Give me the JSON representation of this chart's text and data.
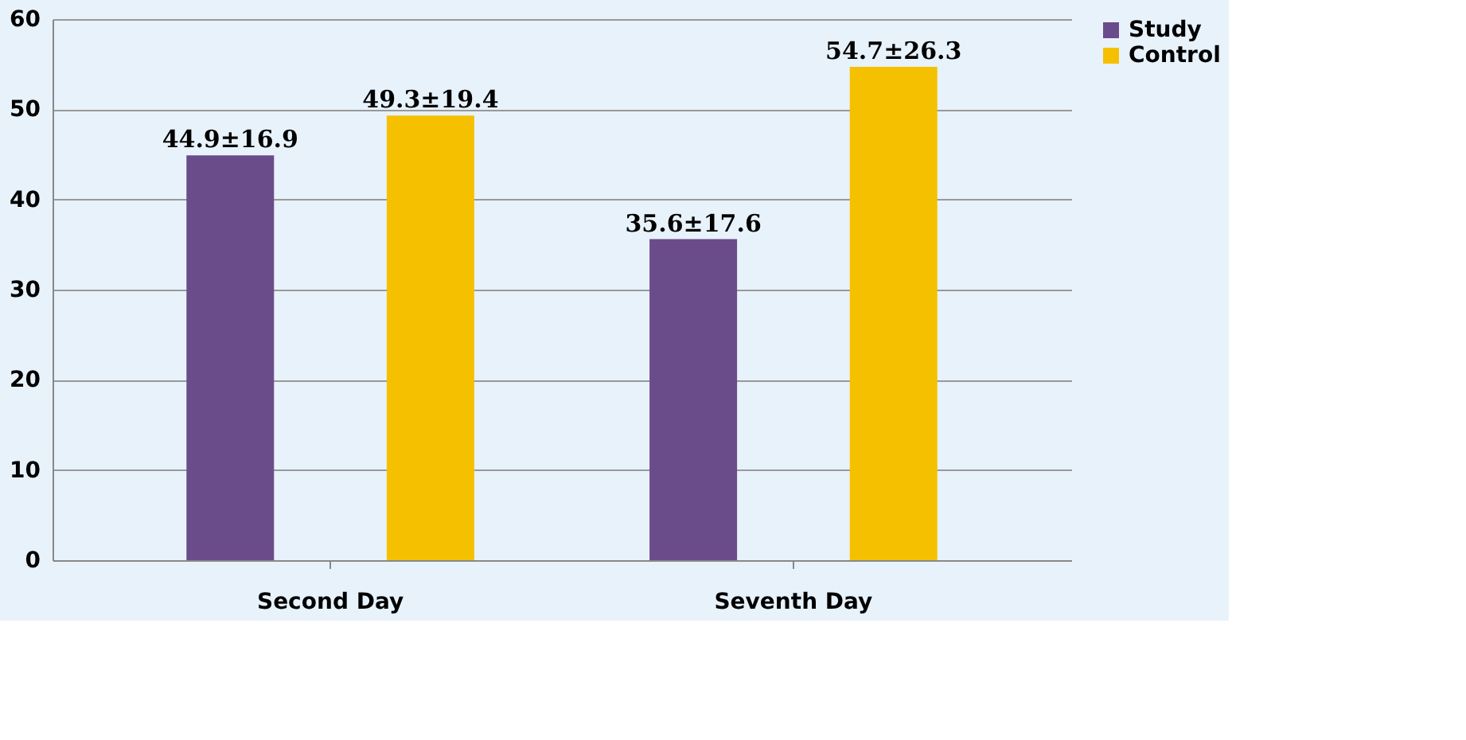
{
  "chart_data": {
    "type": "bar",
    "categories": [
      "Second Day",
      "Seventh Day"
    ],
    "series": [
      {
        "name": "Study",
        "color": "#6b4c8a",
        "values": [
          44.9,
          35.6
        ],
        "value_labels": [
          "44.9±16.9",
          "35.6±17.6"
        ]
      },
      {
        "name": "Control",
        "color": "#f5c000",
        "values": [
          49.3,
          54.7
        ],
        "value_labels": [
          "49.3±19.4",
          "54.7±26.3"
        ]
      }
    ],
    "ylim": [
      0,
      60
    ],
    "yticks": [
      0,
      10,
      20,
      30,
      40,
      50,
      60
    ],
    "grid": "y",
    "legend": "right"
  }
}
